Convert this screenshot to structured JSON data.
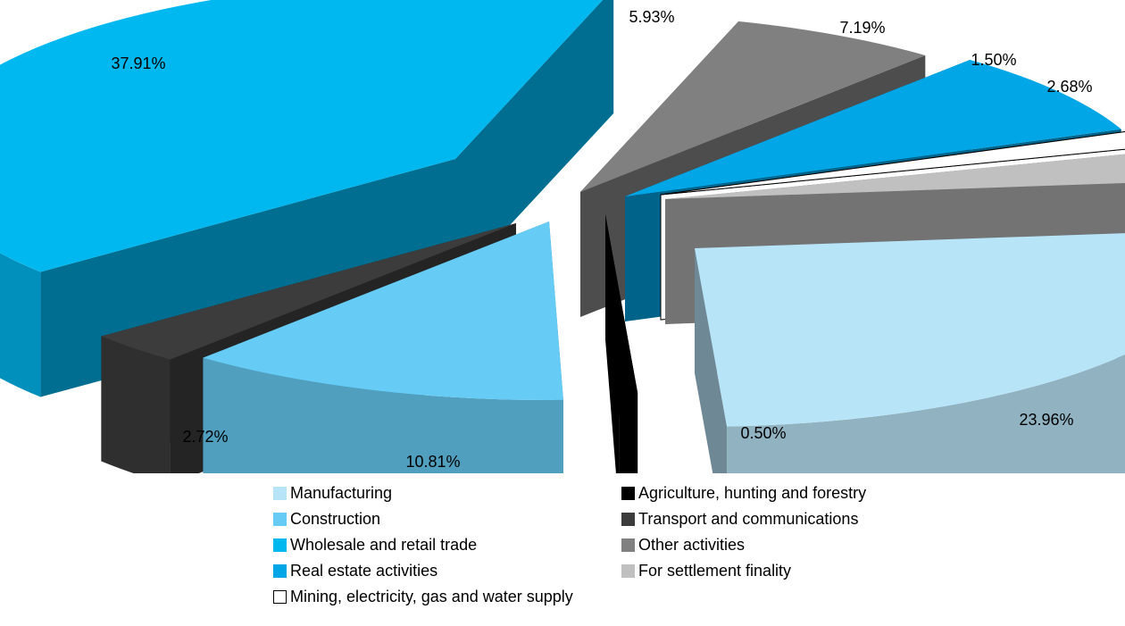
{
  "chart_data": {
    "type": "pie",
    "title": "",
    "slices": [
      {
        "label": "Manufacturing",
        "value": 23.96,
        "value_label": "23.96%",
        "color": "#b8e4f8"
      },
      {
        "label": "Agriculture, hunting and forestry",
        "value": 0.5,
        "value_label": "0.50%",
        "color": "#000000"
      },
      {
        "label": "Construction",
        "value": 10.81,
        "value_label": "10.81%",
        "color": "#66ccf5"
      },
      {
        "label": "Transport and communications",
        "value": 2.72,
        "value_label": "2.72%",
        "color": "#3c3c3c"
      },
      {
        "label": "Wholesale and retail trade",
        "value": 37.91,
        "value_label": "37.91%",
        "color": "#00b8f0"
      },
      {
        "label": "Other activities",
        "value": 5.93,
        "value_label": "5.93%",
        "color": "#808080"
      },
      {
        "label": "Real estate activities",
        "value": 7.19,
        "value_label": "7.19%",
        "color": "#00a6e6"
      },
      {
        "label": "Mining, electricity, gas and water supply",
        "value": 1.5,
        "value_label": "1.50%",
        "color": "#ffffff"
      },
      {
        "label": "For settlement finality",
        "value": 2.68,
        "value_label": "2.68%",
        "color": "#c0c0c0"
      }
    ],
    "legend_position": "bottom",
    "legend_order": [
      "Manufacturing",
      "Agriculture, hunting and forestry",
      "Construction",
      "Transport and communications",
      "Wholesale and retail trade",
      "Other activities",
      "Real estate activities",
      "For settlement finality",
      "Mining, electricity, gas and water supply"
    ],
    "exploded": true,
    "three_d": true
  }
}
